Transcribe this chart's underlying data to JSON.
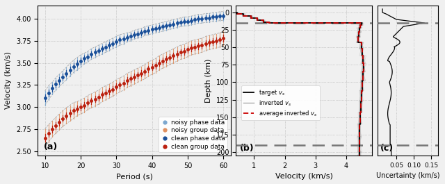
{
  "fig_width": 6.4,
  "fig_height": 2.65,
  "dpi": 100,
  "bg_color": "#f0f0f0",
  "panel_a": {
    "label": "(a)",
    "xlabel": "Period (s)",
    "ylabel": "Velocity (km/s)",
    "xlim": [
      8,
      62
    ],
    "ylim": [
      2.45,
      4.15
    ],
    "xticks": [
      10,
      20,
      30,
      40,
      50,
      60
    ],
    "yticks": [
      2.5,
      2.75,
      3.0,
      3.25,
      3.5,
      3.75,
      4.0
    ],
    "periods": [
      10,
      11,
      12,
      13,
      14,
      15,
      16,
      17,
      18,
      19,
      20,
      21,
      22,
      23,
      24,
      25,
      26,
      27,
      28,
      29,
      30,
      31,
      32,
      33,
      34,
      35,
      36,
      37,
      38,
      39,
      40,
      41,
      42,
      43,
      44,
      45,
      46,
      47,
      48,
      49,
      50,
      51,
      52,
      53,
      54,
      55,
      56,
      57,
      58,
      59,
      60
    ],
    "noisy_phase_mean": [
      3.1,
      3.16,
      3.21,
      3.26,
      3.3,
      3.34,
      3.38,
      3.42,
      3.46,
      3.49,
      3.52,
      3.55,
      3.57,
      3.6,
      3.62,
      3.64,
      3.66,
      3.68,
      3.7,
      3.72,
      3.74,
      3.76,
      3.77,
      3.79,
      3.8,
      3.82,
      3.83,
      3.84,
      3.86,
      3.87,
      3.88,
      3.89,
      3.9,
      3.91,
      3.92,
      3.93,
      3.94,
      3.95,
      3.96,
      3.97,
      3.97,
      3.98,
      3.99,
      4.0,
      4.0,
      4.01,
      4.01,
      4.02,
      4.02,
      4.03,
      4.03
    ],
    "noisy_phase_std": [
      0.08,
      0.08,
      0.07,
      0.07,
      0.07,
      0.07,
      0.07,
      0.07,
      0.07,
      0.07,
      0.07,
      0.06,
      0.06,
      0.06,
      0.06,
      0.06,
      0.06,
      0.06,
      0.06,
      0.06,
      0.06,
      0.06,
      0.06,
      0.05,
      0.05,
      0.05,
      0.05,
      0.05,
      0.05,
      0.05,
      0.05,
      0.05,
      0.05,
      0.05,
      0.05,
      0.05,
      0.05,
      0.05,
      0.05,
      0.05,
      0.05,
      0.05,
      0.05,
      0.05,
      0.05,
      0.05,
      0.05,
      0.05,
      0.05,
      0.05,
      0.05
    ],
    "clean_phase_mean": [
      3.1,
      3.16,
      3.21,
      3.26,
      3.3,
      3.34,
      3.38,
      3.42,
      3.46,
      3.49,
      3.52,
      3.55,
      3.57,
      3.6,
      3.62,
      3.64,
      3.66,
      3.68,
      3.7,
      3.72,
      3.74,
      3.76,
      3.77,
      3.79,
      3.8,
      3.82,
      3.83,
      3.84,
      3.86,
      3.87,
      3.88,
      3.89,
      3.9,
      3.91,
      3.92,
      3.93,
      3.94,
      3.95,
      3.96,
      3.97,
      3.97,
      3.98,
      3.99,
      4.0,
      4.0,
      4.01,
      4.01,
      4.02,
      4.02,
      4.03,
      4.03
    ],
    "clean_phase_std": [
      0.01,
      0.01,
      0.01,
      0.009,
      0.009,
      0.009,
      0.009,
      0.009,
      0.009,
      0.009,
      0.009,
      0.008,
      0.008,
      0.008,
      0.008,
      0.008,
      0.008,
      0.008,
      0.008,
      0.008,
      0.008,
      0.008,
      0.008,
      0.008,
      0.008,
      0.008,
      0.008,
      0.008,
      0.008,
      0.008,
      0.008,
      0.007,
      0.007,
      0.007,
      0.007,
      0.007,
      0.007,
      0.007,
      0.007,
      0.007,
      0.007,
      0.007,
      0.007,
      0.007,
      0.007,
      0.007,
      0.007,
      0.007,
      0.007,
      0.007,
      0.007
    ],
    "noisy_group_mean": [
      2.65,
      2.7,
      2.75,
      2.79,
      2.83,
      2.87,
      2.9,
      2.93,
      2.96,
      2.98,
      3.0,
      3.02,
      3.05,
      3.07,
      3.09,
      3.11,
      3.14,
      3.16,
      3.18,
      3.2,
      3.23,
      3.25,
      3.27,
      3.3,
      3.32,
      3.34,
      3.36,
      3.38,
      3.4,
      3.43,
      3.45,
      3.47,
      3.5,
      3.52,
      3.54,
      3.56,
      3.58,
      3.6,
      3.62,
      3.63,
      3.65,
      3.67,
      3.68,
      3.69,
      3.7,
      3.72,
      3.73,
      3.74,
      3.75,
      3.76,
      3.78
    ],
    "noisy_group_std": [
      0.1,
      0.1,
      0.09,
      0.09,
      0.09,
      0.09,
      0.09,
      0.09,
      0.09,
      0.08,
      0.08,
      0.08,
      0.08,
      0.08,
      0.08,
      0.08,
      0.08,
      0.08,
      0.08,
      0.08,
      0.08,
      0.08,
      0.08,
      0.08,
      0.08,
      0.08,
      0.08,
      0.08,
      0.08,
      0.08,
      0.08,
      0.08,
      0.08,
      0.08,
      0.08,
      0.08,
      0.08,
      0.08,
      0.08,
      0.08,
      0.08,
      0.08,
      0.08,
      0.08,
      0.08,
      0.08,
      0.08,
      0.08,
      0.08,
      0.08,
      0.08
    ],
    "clean_group_mean": [
      2.65,
      2.7,
      2.75,
      2.79,
      2.83,
      2.87,
      2.9,
      2.93,
      2.96,
      2.98,
      3.0,
      3.02,
      3.05,
      3.07,
      3.09,
      3.11,
      3.14,
      3.16,
      3.18,
      3.2,
      3.23,
      3.25,
      3.27,
      3.3,
      3.32,
      3.34,
      3.36,
      3.38,
      3.4,
      3.43,
      3.45,
      3.47,
      3.5,
      3.52,
      3.54,
      3.56,
      3.58,
      3.6,
      3.62,
      3.63,
      3.65,
      3.67,
      3.68,
      3.69,
      3.7,
      3.72,
      3.73,
      3.74,
      3.75,
      3.76,
      3.78
    ],
    "clean_group_std": [
      0.01,
      0.01,
      0.01,
      0.01,
      0.01,
      0.009,
      0.009,
      0.009,
      0.009,
      0.009,
      0.009,
      0.009,
      0.009,
      0.009,
      0.009,
      0.009,
      0.009,
      0.009,
      0.009,
      0.009,
      0.009,
      0.009,
      0.009,
      0.009,
      0.009,
      0.009,
      0.009,
      0.009,
      0.009,
      0.009,
      0.009,
      0.009,
      0.009,
      0.009,
      0.009,
      0.009,
      0.009,
      0.009,
      0.009,
      0.009,
      0.009,
      0.009,
      0.009,
      0.009,
      0.009,
      0.009,
      0.009,
      0.009,
      0.009,
      0.009,
      0.009
    ],
    "noisy_phase_color": "#7da8cf",
    "noisy_group_color": "#e09060",
    "clean_phase_color": "#1a4f99",
    "clean_group_color": "#bb2010",
    "envelope_color": "#999999",
    "legend_labels": [
      "noisy phase data",
      "noisy group data",
      "clean phase data",
      "clean group data"
    ]
  },
  "panel_b": {
    "label": "(b)",
    "xlabel": "Velocity (km/s)",
    "xlim": [
      0.4,
      4.85
    ],
    "xticks": [
      1,
      2,
      3,
      4
    ],
    "ylim": [
      205,
      -10
    ],
    "yticks": [
      0,
      25,
      50,
      75,
      100,
      125,
      150,
      175,
      200
    ],
    "dashed_line_depths": [
      15,
      190
    ],
    "dashed_line_color": "#777777",
    "target_color": "#000000",
    "inverted_color": "#aaaaaa",
    "avg_inverted_color": "#cc0000",
    "legend_labels_b": [
      "target $v_s$",
      "inverted $v_s$",
      "average inverted $v_s$"
    ]
  },
  "panel_c": {
    "label": "(c)",
    "xlabel": "Uncertainty (km/s)",
    "xlim": [
      -0.005,
      0.17
    ],
    "xticks": [
      0.05,
      0.1,
      0.15
    ],
    "ylim": [
      205,
      -10
    ],
    "dashed_line_depths": [
      15,
      190
    ],
    "dashed_line_color": "#777777",
    "uncertainty_color": "#000000"
  }
}
